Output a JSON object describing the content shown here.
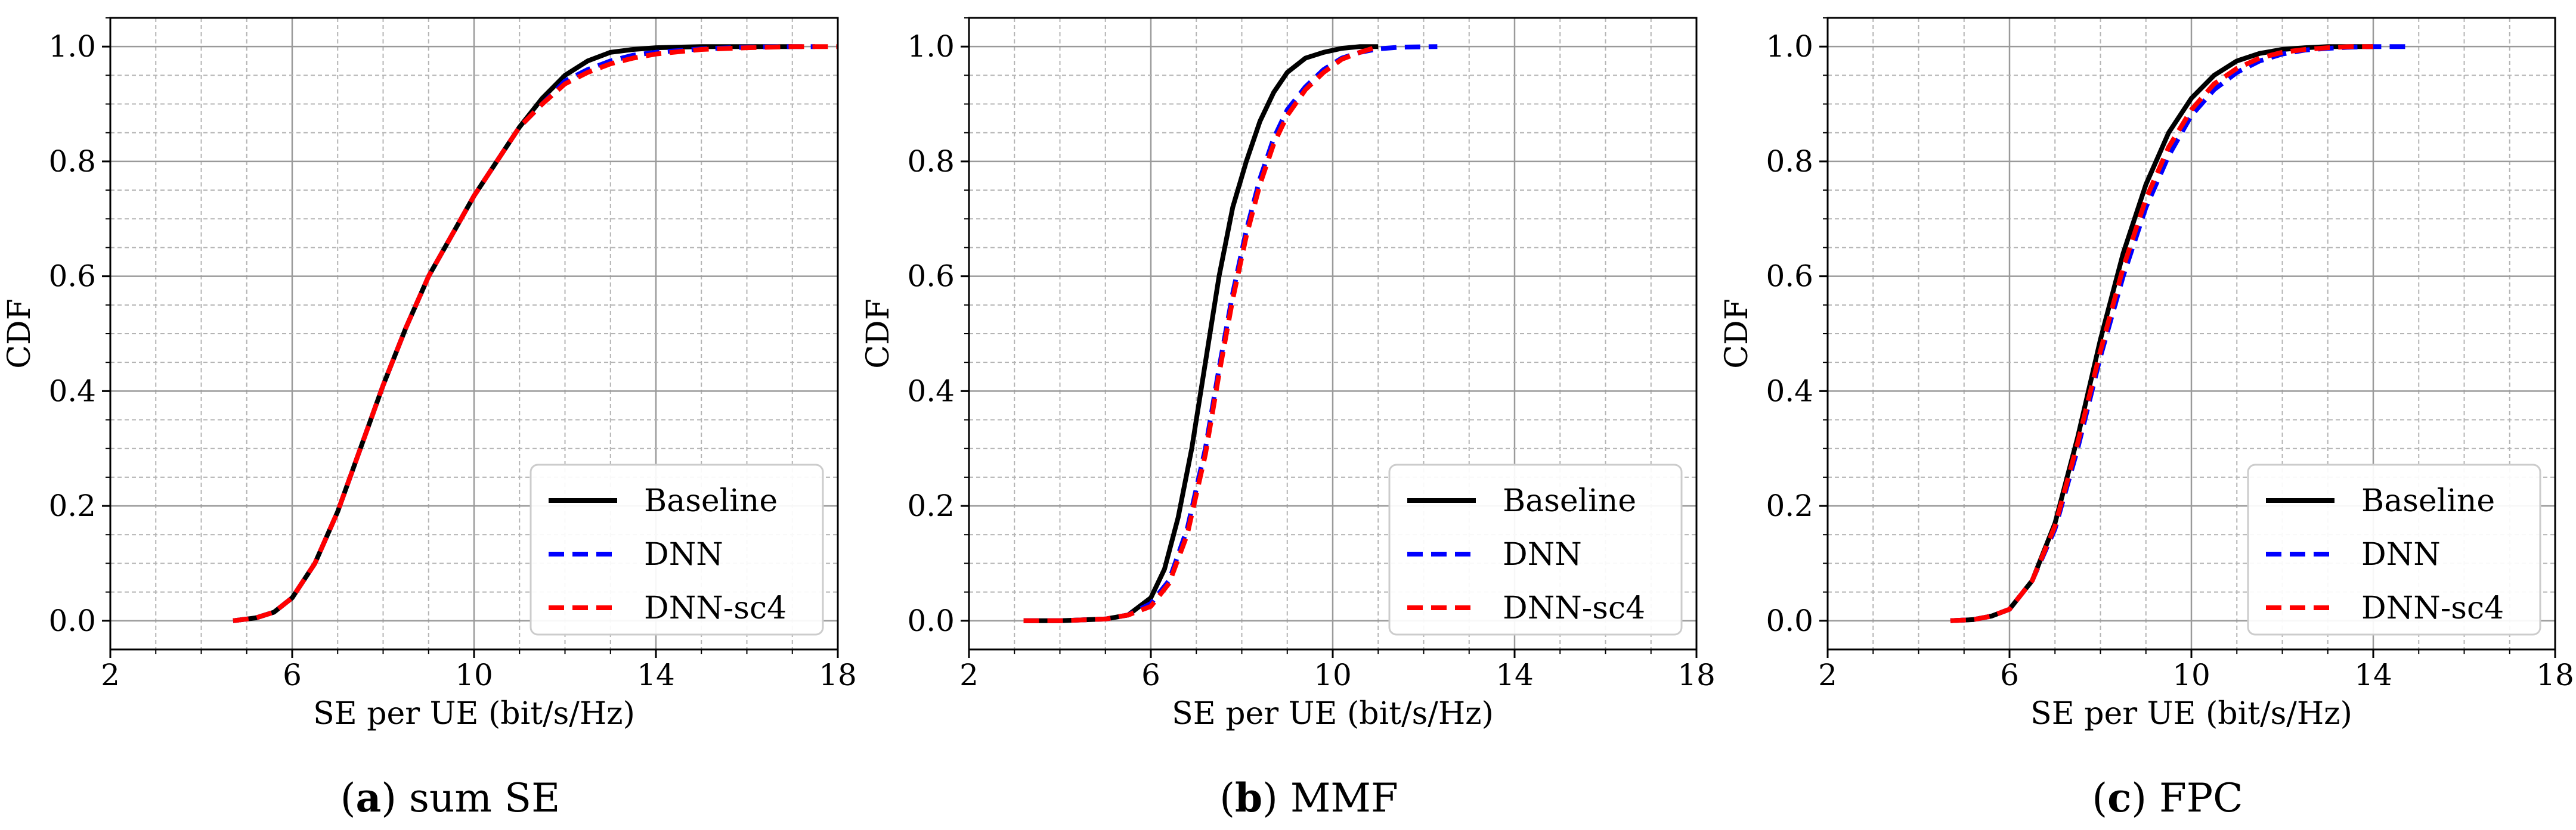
{
  "chart_data": [
    {
      "type": "line",
      "caption_letter": "a",
      "caption_text": " sum SE",
      "xlabel": "SE per UE (bit/s/Hz)",
      "ylabel": "CDF",
      "xlim": [
        2,
        18
      ],
      "ylim": [
        -0.05,
        1.05
      ],
      "xticks": [
        2,
        6,
        10,
        14,
        18
      ],
      "yticks": [
        0.0,
        0.2,
        0.4,
        0.6,
        0.8,
        1.0
      ],
      "xticks_labels": [
        "2",
        "6",
        "10",
        "14",
        "18"
      ],
      "yticks_labels": [
        "0.0",
        "0.2",
        "0.4",
        "0.6",
        "0.8",
        "1.0"
      ],
      "grid": true,
      "legend_position": "bottom-right",
      "series": [
        {
          "name": "Baseline",
          "color": "#000000",
          "style": "solid",
          "x": [
            4.7,
            5.2,
            5.6,
            6.0,
            6.5,
            7.0,
            7.5,
            8.0,
            8.5,
            9.0,
            9.5,
            10.0,
            10.5,
            11.0,
            11.5,
            12.0,
            12.5,
            13.0,
            13.5,
            14.0,
            15.0,
            16.0,
            17.0
          ],
          "y": [
            0.0,
            0.005,
            0.015,
            0.04,
            0.1,
            0.19,
            0.3,
            0.41,
            0.51,
            0.6,
            0.67,
            0.74,
            0.8,
            0.86,
            0.91,
            0.95,
            0.975,
            0.99,
            0.995,
            0.998,
            1.0,
            1.0,
            1.0
          ]
        },
        {
          "name": "DNN",
          "color": "#0000ff",
          "style": "dashed",
          "x": [
            4.7,
            5.2,
            5.6,
            6.0,
            6.5,
            7.0,
            7.5,
            8.0,
            8.5,
            9.0,
            9.5,
            10.0,
            10.5,
            11.0,
            11.5,
            12.0,
            12.5,
            13.0,
            13.5,
            14.0,
            15.0,
            16.0,
            17.0,
            17.5
          ],
          "y": [
            0.0,
            0.005,
            0.015,
            0.04,
            0.1,
            0.19,
            0.3,
            0.41,
            0.51,
            0.6,
            0.67,
            0.74,
            0.8,
            0.86,
            0.9,
            0.94,
            0.96,
            0.975,
            0.985,
            0.99,
            0.996,
            0.999,
            1.0,
            1.0
          ]
        },
        {
          "name": "DNN-sc4",
          "color": "#ff0000",
          "style": "dashed",
          "x": [
            4.7,
            5.2,
            5.6,
            6.0,
            6.5,
            7.0,
            7.5,
            8.0,
            8.5,
            9.0,
            9.5,
            10.0,
            10.5,
            11.0,
            11.5,
            12.0,
            12.5,
            13.0,
            13.5,
            14.0,
            15.0,
            16.0,
            17.0,
            18.0
          ],
          "y": [
            0.0,
            0.005,
            0.015,
            0.04,
            0.1,
            0.19,
            0.3,
            0.41,
            0.51,
            0.6,
            0.67,
            0.74,
            0.8,
            0.86,
            0.9,
            0.935,
            0.955,
            0.97,
            0.98,
            0.987,
            0.995,
            0.998,
            1.0,
            1.0
          ]
        }
      ]
    },
    {
      "type": "line",
      "caption_letter": "b",
      "caption_text": " MMF",
      "xlabel": "SE per UE (bit/s/Hz)",
      "ylabel": "CDF",
      "xlim": [
        2,
        18
      ],
      "ylim": [
        -0.05,
        1.05
      ],
      "xticks": [
        2,
        6,
        10,
        14,
        18
      ],
      "yticks": [
        0.0,
        0.2,
        0.4,
        0.6,
        0.8,
        1.0
      ],
      "xticks_labels": [
        "2",
        "6",
        "10",
        "14",
        "18"
      ],
      "yticks_labels": [
        "0.0",
        "0.2",
        "0.4",
        "0.6",
        "0.8",
        "1.0"
      ],
      "grid": true,
      "legend_position": "bottom-right",
      "series": [
        {
          "name": "Baseline",
          "color": "#000000",
          "style": "solid",
          "x": [
            3.2,
            4.0,
            5.0,
            5.5,
            6.0,
            6.3,
            6.6,
            6.9,
            7.2,
            7.5,
            7.8,
            8.1,
            8.4,
            8.7,
            9.0,
            9.4,
            9.8,
            10.2,
            10.6,
            11.0
          ],
          "y": [
            0.0,
            0.0,
            0.003,
            0.01,
            0.04,
            0.09,
            0.18,
            0.3,
            0.45,
            0.6,
            0.72,
            0.8,
            0.87,
            0.92,
            0.955,
            0.98,
            0.99,
            0.997,
            1.0,
            1.0
          ]
        },
        {
          "name": "DNN",
          "color": "#0000ff",
          "style": "dashed",
          "x": [
            3.2,
            4.0,
            5.0,
            5.5,
            6.0,
            6.4,
            6.8,
            7.2,
            7.5,
            7.8,
            8.1,
            8.4,
            8.7,
            9.0,
            9.4,
            9.8,
            10.2,
            10.6,
            11.0,
            11.5,
            12.3
          ],
          "y": [
            0.0,
            0.0,
            0.003,
            0.01,
            0.03,
            0.07,
            0.16,
            0.3,
            0.44,
            0.57,
            0.68,
            0.77,
            0.84,
            0.89,
            0.93,
            0.96,
            0.98,
            0.99,
            0.996,
            0.999,
            1.0
          ]
        },
        {
          "name": "DNN-sc4",
          "color": "#ff0000",
          "style": "dashed",
          "x": [
            3.2,
            4.0,
            5.0,
            5.5,
            6.0,
            6.4,
            6.8,
            7.2,
            7.5,
            7.8,
            8.1,
            8.4,
            8.7,
            9.0,
            9.4,
            9.8,
            10.2,
            10.6,
            11.0
          ],
          "y": [
            0.0,
            0.0,
            0.003,
            0.01,
            0.025,
            0.065,
            0.15,
            0.29,
            0.43,
            0.56,
            0.67,
            0.76,
            0.83,
            0.88,
            0.925,
            0.955,
            0.978,
            0.99,
            1.0
          ]
        }
      ]
    },
    {
      "type": "line",
      "caption_letter": "c",
      "caption_text": " FPC",
      "xlabel": "SE per UE (bit/s/Hz)",
      "ylabel": "CDF",
      "xlim": [
        2,
        18
      ],
      "ylim": [
        -0.05,
        1.05
      ],
      "xticks": [
        2,
        6,
        10,
        14,
        18
      ],
      "yticks": [
        0.0,
        0.2,
        0.4,
        0.6,
        0.8,
        1.0
      ],
      "xticks_labels": [
        "2",
        "6",
        "10",
        "14",
        "18"
      ],
      "yticks_labels": [
        "0.0",
        "0.2",
        "0.4",
        "0.6",
        "0.8",
        "1.0"
      ],
      "grid": true,
      "legend_position": "bottom-right",
      "series": [
        {
          "name": "Baseline",
          "color": "#000000",
          "style": "solid",
          "x": [
            4.7,
            5.2,
            5.6,
            6.0,
            6.5,
            7.0,
            7.5,
            8.0,
            8.5,
            9.0,
            9.5,
            10.0,
            10.5,
            11.0,
            11.5,
            12.0,
            12.5,
            13.0,
            13.5,
            14.0
          ],
          "y": [
            0.0,
            0.002,
            0.008,
            0.02,
            0.07,
            0.17,
            0.32,
            0.49,
            0.64,
            0.76,
            0.85,
            0.91,
            0.95,
            0.975,
            0.988,
            0.995,
            0.998,
            1.0,
            1.0,
            1.0
          ]
        },
        {
          "name": "DNN",
          "color": "#0000ff",
          "style": "dashed",
          "x": [
            4.7,
            5.2,
            5.6,
            6.0,
            6.5,
            7.0,
            7.5,
            8.0,
            8.5,
            9.0,
            9.5,
            10.0,
            10.5,
            11.0,
            11.5,
            12.0,
            12.5,
            13.0,
            13.5,
            14.0,
            14.8
          ],
          "y": [
            0.0,
            0.002,
            0.008,
            0.02,
            0.07,
            0.16,
            0.3,
            0.46,
            0.6,
            0.72,
            0.81,
            0.88,
            0.925,
            0.955,
            0.975,
            0.987,
            0.994,
            0.997,
            0.999,
            1.0,
            1.0
          ]
        },
        {
          "name": "DNN-sc4",
          "color": "#ff0000",
          "style": "dashed",
          "x": [
            4.7,
            5.2,
            5.6,
            6.0,
            6.5,
            7.0,
            7.5,
            8.0,
            8.5,
            9.0,
            9.5,
            10.0,
            10.5,
            11.0,
            11.5,
            12.0,
            12.5,
            13.0,
            13.5,
            14.0
          ],
          "y": [
            0.0,
            0.002,
            0.008,
            0.02,
            0.07,
            0.165,
            0.31,
            0.47,
            0.615,
            0.735,
            0.825,
            0.89,
            0.935,
            0.962,
            0.98,
            0.99,
            0.995,
            0.998,
            1.0,
            1.0
          ]
        }
      ]
    }
  ]
}
